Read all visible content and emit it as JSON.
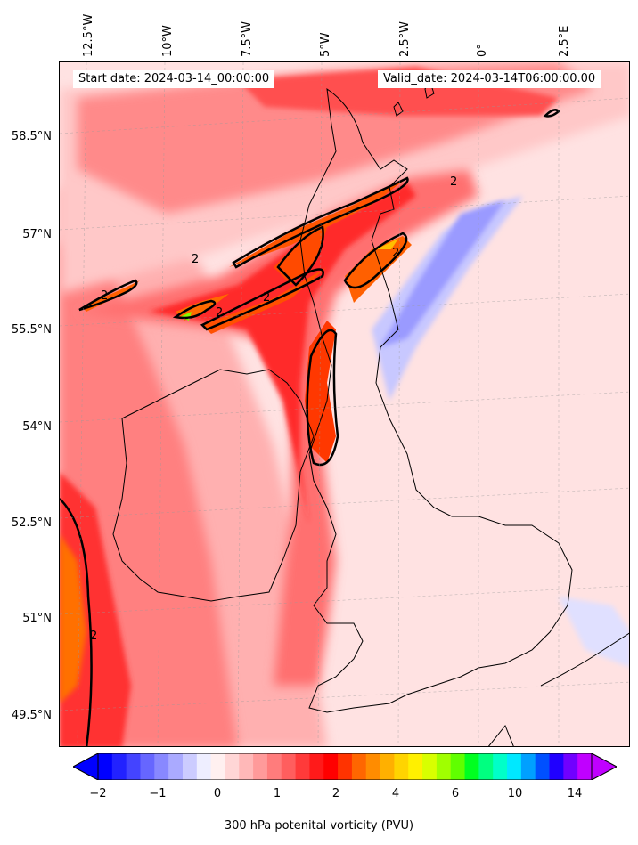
{
  "map": {
    "start_label": "Start date: 2024-03-14_00:00:00",
    "valid_label": "Valid_date: 2024-03-14T06:00:00.00",
    "lon_labels": [
      "12.5°W",
      "10°W",
      "7.5°W",
      "5°W",
      "2.5°W",
      "0°",
      "2.5°E"
    ],
    "lat_labels": [
      "58.5°N",
      "57°N",
      "55.5°N",
      "54°N",
      "52.5°N",
      "51°N",
      "49.5°N"
    ],
    "contour_label": "2"
  },
  "colorbar": {
    "label": "300 hPa potenital vorticity (PVU)",
    "ticks": [
      "−2",
      "−1",
      "0",
      "1",
      "2",
      "4",
      "6",
      "10",
      "14"
    ],
    "colors": [
      "#0000ff",
      "#2222ff",
      "#4444ff",
      "#6666ff",
      "#8888ff",
      "#aaaaff",
      "#ccccff",
      "#eeeeff",
      "#fff0f0",
      "#ffd6d6",
      "#ffb8b8",
      "#ff9a9a",
      "#ff7c7c",
      "#ff5e5e",
      "#ff3a3a",
      "#ff1a1a",
      "#ff0000",
      "#ff3300",
      "#ff6600",
      "#ff8c00",
      "#ffb000",
      "#ffd400",
      "#fff000",
      "#d8ff00",
      "#a0ff00",
      "#60ff00",
      "#00ff20",
      "#00ff80",
      "#00ffc8",
      "#00e8ff",
      "#00a0ff",
      "#0050ff",
      "#2000ff",
      "#7000ff",
      "#c000ff"
    ]
  }
}
